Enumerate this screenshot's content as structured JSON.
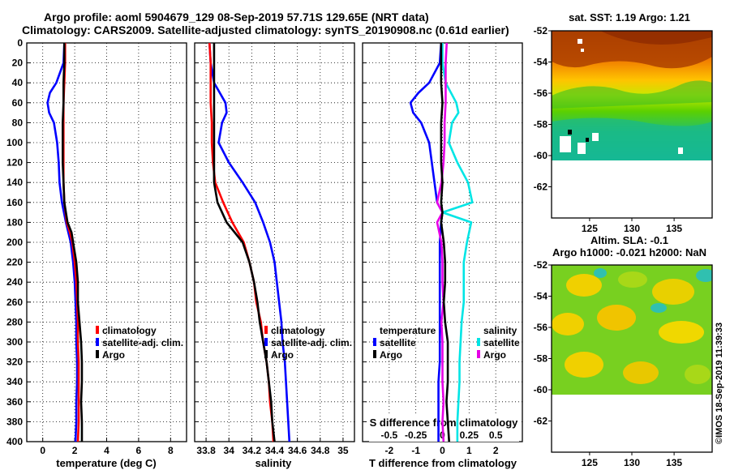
{
  "header": {
    "line1": "Argo profile: aoml 5904679_129 08-Sep-2019 57.71S 129.65E (NRT data)",
    "line2": "Climatology: CARS2009. Satellite-adjusted climatology: synTS_20190908.nc (0.61d earlier)"
  },
  "colors": {
    "climatology": "#ff0000",
    "satellite": "#0000ff",
    "argo": "#000000",
    "sal_satellite": "#00e5e5",
    "sal_argo": "#e600e6"
  },
  "credit": "©IMOS 18-Sep-2019 11:39:33",
  "chart_data": [
    {
      "type": "line",
      "panel": "temperature",
      "xlabel": "temperature (deg C)",
      "xlim": [
        -1,
        9
      ],
      "xticks": [
        "0",
        "2",
        "4",
        "6",
        "8"
      ],
      "ylim": [
        400,
        0
      ],
      "yticks": [
        "0",
        "20",
        "40",
        "60",
        "80",
        "100",
        "120",
        "140",
        "160",
        "180",
        "200",
        "220",
        "240",
        "260",
        "280",
        "300",
        "320",
        "340",
        "360",
        "380",
        "400"
      ],
      "legend": [
        "climatology",
        "satellite-adj. clim.",
        "Argo"
      ],
      "series": [
        {
          "name": "climatology",
          "depth": [
            0,
            20,
            40,
            60,
            80,
            100,
            120,
            140,
            160,
            180,
            190,
            200,
            220,
            240,
            260,
            280,
            300,
            320,
            340,
            360,
            380,
            400
          ],
          "values": [
            1.4,
            1.4,
            1.35,
            1.3,
            1.3,
            1.3,
            1.3,
            1.3,
            1.35,
            1.5,
            1.7,
            1.85,
            2.0,
            2.1,
            2.15,
            2.2,
            2.2,
            2.25,
            2.25,
            2.25,
            2.25,
            2.2
          ]
        },
        {
          "name": "satellite-adj. clim.",
          "depth": [
            0,
            20,
            40,
            50,
            60,
            70,
            80,
            100,
            120,
            140,
            160,
            180,
            200,
            220,
            240,
            260,
            280,
            300,
            320,
            340,
            360,
            380,
            400
          ],
          "values": [
            1.35,
            1.3,
            0.85,
            0.45,
            0.3,
            0.4,
            0.7,
            0.9,
            1.0,
            1.05,
            1.2,
            1.45,
            1.75,
            1.9,
            2.0,
            2.05,
            2.1,
            2.1,
            2.15,
            2.15,
            2.1,
            2.1,
            2.05
          ]
        },
        {
          "name": "Argo",
          "depth": [
            0,
            20,
            40,
            60,
            80,
            100,
            120,
            140,
            160,
            180,
            190,
            200,
            220,
            240,
            260,
            280,
            300,
            320,
            340,
            360,
            380,
            400
          ],
          "values": [
            1.35,
            1.35,
            1.3,
            1.3,
            1.25,
            1.25,
            1.25,
            1.3,
            1.35,
            1.55,
            1.8,
            1.9,
            2.1,
            2.2,
            2.2,
            2.3,
            2.4,
            2.45,
            2.45,
            2.4,
            2.45,
            2.45
          ]
        }
      ]
    },
    {
      "type": "line",
      "panel": "salinity",
      "xlabel": "salinity",
      "xlim": [
        33.7,
        35.1
      ],
      "xticks": [
        "33.8",
        "34",
        "34.2",
        "34.4",
        "34.6",
        "34.8",
        "35"
      ],
      "ylim": [
        400,
        0
      ],
      "legend": [
        "climatology",
        "satellite-adj. clim.",
        "Argo"
      ],
      "series": [
        {
          "name": "climatology",
          "depth": [
            0,
            20,
            60,
            80,
            100,
            120,
            140,
            160,
            180,
            200,
            220,
            240,
            260,
            280,
            300,
            320,
            340,
            360,
            380,
            400
          ],
          "values": [
            33.83,
            33.84,
            33.84,
            33.85,
            33.85,
            33.86,
            33.88,
            33.95,
            34.03,
            34.13,
            34.18,
            34.22,
            34.24,
            34.28,
            34.3,
            34.33,
            34.35,
            34.36,
            34.38,
            34.39
          ]
        },
        {
          "name": "satellite-adj. clim.",
          "depth": [
            0,
            20,
            40,
            60,
            70,
            80,
            100,
            120,
            140,
            160,
            180,
            200,
            220,
            240,
            260,
            280,
            300,
            320,
            340,
            360,
            380,
            400
          ],
          "values": [
            33.83,
            33.84,
            33.87,
            33.97,
            33.98,
            33.94,
            33.91,
            34.0,
            34.12,
            34.23,
            34.3,
            34.36,
            34.4,
            34.42,
            34.44,
            34.46,
            34.47,
            34.49,
            34.5,
            34.51,
            34.52,
            34.53
          ]
        },
        {
          "name": "Argo",
          "depth": [
            0,
            20,
            60,
            80,
            100,
            120,
            140,
            160,
            180,
            200,
            220,
            240,
            260,
            280,
            300,
            320,
            340,
            360,
            380,
            400
          ],
          "values": [
            33.87,
            33.87,
            33.87,
            33.87,
            33.87,
            33.87,
            33.87,
            33.9,
            33.98,
            34.12,
            34.18,
            34.22,
            34.25,
            34.27,
            34.3,
            34.33,
            34.35,
            34.37,
            34.38,
            34.4
          ]
        }
      ]
    },
    {
      "type": "line",
      "panel": "difference",
      "xlabel": "T difference from climatology",
      "xlim": [
        -3,
        3
      ],
      "xticks": [
        "-2",
        "-1",
        "0",
        "1",
        "2"
      ],
      "xlabel_top": "S difference from climatology",
      "xticks_top": [
        "-0.5",
        "-0.25",
        "0",
        "0.25",
        "0.5"
      ],
      "ylim": [
        400,
        0
      ],
      "legend_temperature": {
        "title": "temperature",
        "items": [
          "satellite",
          "Argo"
        ]
      },
      "legend_salinity": {
        "title": "salinity",
        "items": [
          "satellite",
          "Argo"
        ]
      },
      "series": [
        {
          "name": "temperature satellite",
          "depth": [
            0,
            20,
            40,
            50,
            60,
            70,
            80,
            100,
            120,
            140,
            160,
            170,
            180,
            200,
            220,
            240,
            260,
            280,
            300,
            320,
            340,
            360,
            380,
            400
          ],
          "values": [
            -0.05,
            -0.1,
            -0.5,
            -0.9,
            -1.2,
            -1.1,
            -0.8,
            -0.5,
            -0.4,
            -0.3,
            -0.2,
            0,
            -0.05,
            -0.1,
            -0.1,
            -0.1,
            -0.1,
            -0.1,
            -0.1,
            -0.1,
            -0.15,
            -0.15,
            -0.15,
            -0.15
          ]
        },
        {
          "name": "temperature Argo",
          "depth": [
            0,
            20,
            40,
            60,
            80,
            100,
            120,
            140,
            160,
            170,
            180,
            200,
            220,
            240,
            260,
            280,
            300,
            320,
            340,
            360,
            380,
            400
          ],
          "values": [
            -0.05,
            -0.05,
            -0.05,
            0,
            -0.05,
            -0.05,
            -0.05,
            0,
            -0.05,
            0,
            -0.05,
            0.05,
            0.1,
            0.1,
            0.05,
            0.1,
            0.2,
            0.2,
            0.2,
            0.15,
            0.2,
            0.25
          ]
        },
        {
          "name": "salinity satellite",
          "depth": [
            0,
            20,
            40,
            60,
            70,
            80,
            100,
            120,
            140,
            160,
            170,
            180,
            200,
            220,
            240,
            260,
            280,
            300,
            320,
            340,
            360,
            380,
            400
          ],
          "values": [
            0.0,
            0.0,
            0.03,
            0.13,
            0.15,
            0.09,
            0.06,
            0.14,
            0.24,
            0.28,
            0.0,
            0.27,
            0.23,
            0.2,
            0.2,
            0.2,
            0.18,
            0.17,
            0.16,
            0.16,
            0.15,
            0.14,
            0.14
          ]
        },
        {
          "name": "salinity Argo",
          "depth": [
            0,
            20,
            40,
            60,
            80,
            100,
            120,
            140,
            160,
            170,
            180,
            200,
            220,
            240,
            260,
            280,
            300,
            320,
            340,
            360,
            380,
            400
          ],
          "values": [
            0.04,
            0.03,
            0.03,
            0.03,
            0.02,
            0.02,
            0.01,
            -0.01,
            -0.05,
            0.0,
            -0.05,
            -0.01,
            0.0,
            0.0,
            0.01,
            -0.01,
            0.0,
            0.0,
            0.0,
            0.01,
            0.0,
            0.01
          ]
        }
      ]
    },
    {
      "type": "heatmap",
      "panel": "sst_map",
      "title": "sat. SST: 1.19 Argo: 1.21",
      "xticks": [
        "125",
        "130",
        "135"
      ],
      "yticks": [
        "-52",
        "-54",
        "-56",
        "-58",
        "-60",
        "-62"
      ],
      "xlim": [
        120.5,
        139.5
      ],
      "ylim": [
        -64,
        -52
      ]
    },
    {
      "type": "heatmap",
      "panel": "sla_map",
      "title": "Altim. SLA: -0.1",
      "subtitle": "Argo h1000: -0.021 h2000: NaN",
      "xticks": [
        "125",
        "130",
        "135"
      ],
      "yticks": [
        "-52",
        "-54",
        "-56",
        "-58",
        "-60",
        "-62"
      ],
      "xlim": [
        120.5,
        139.5
      ],
      "ylim": [
        -64,
        -52
      ]
    }
  ]
}
